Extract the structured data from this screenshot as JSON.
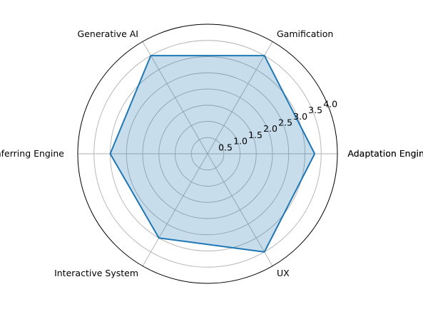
{
  "chart_data": {
    "type": "radar",
    "categories": [
      "Adaptation Engine",
      "Gamification",
      "Generative AI",
      "Inferring Engine",
      "Interactive System",
      "UX",
      "Adaptation Engine"
    ],
    "series": [
      {
        "values": [
          3.3,
          3.5,
          3.5,
          3.0,
          3.0,
          3.5,
          3.3
        ]
      }
    ],
    "rlim": [
      0,
      4.0
    ],
    "r_ticks": [
      "0.5",
      "1.0",
      "1.5",
      "2.0",
      "2.5",
      "3.0",
      "3.5",
      "4.0"
    ],
    "grid": true,
    "line_color": "#1f77b4",
    "fill_color": "#1f77b4",
    "fill_alpha": 0.25
  }
}
